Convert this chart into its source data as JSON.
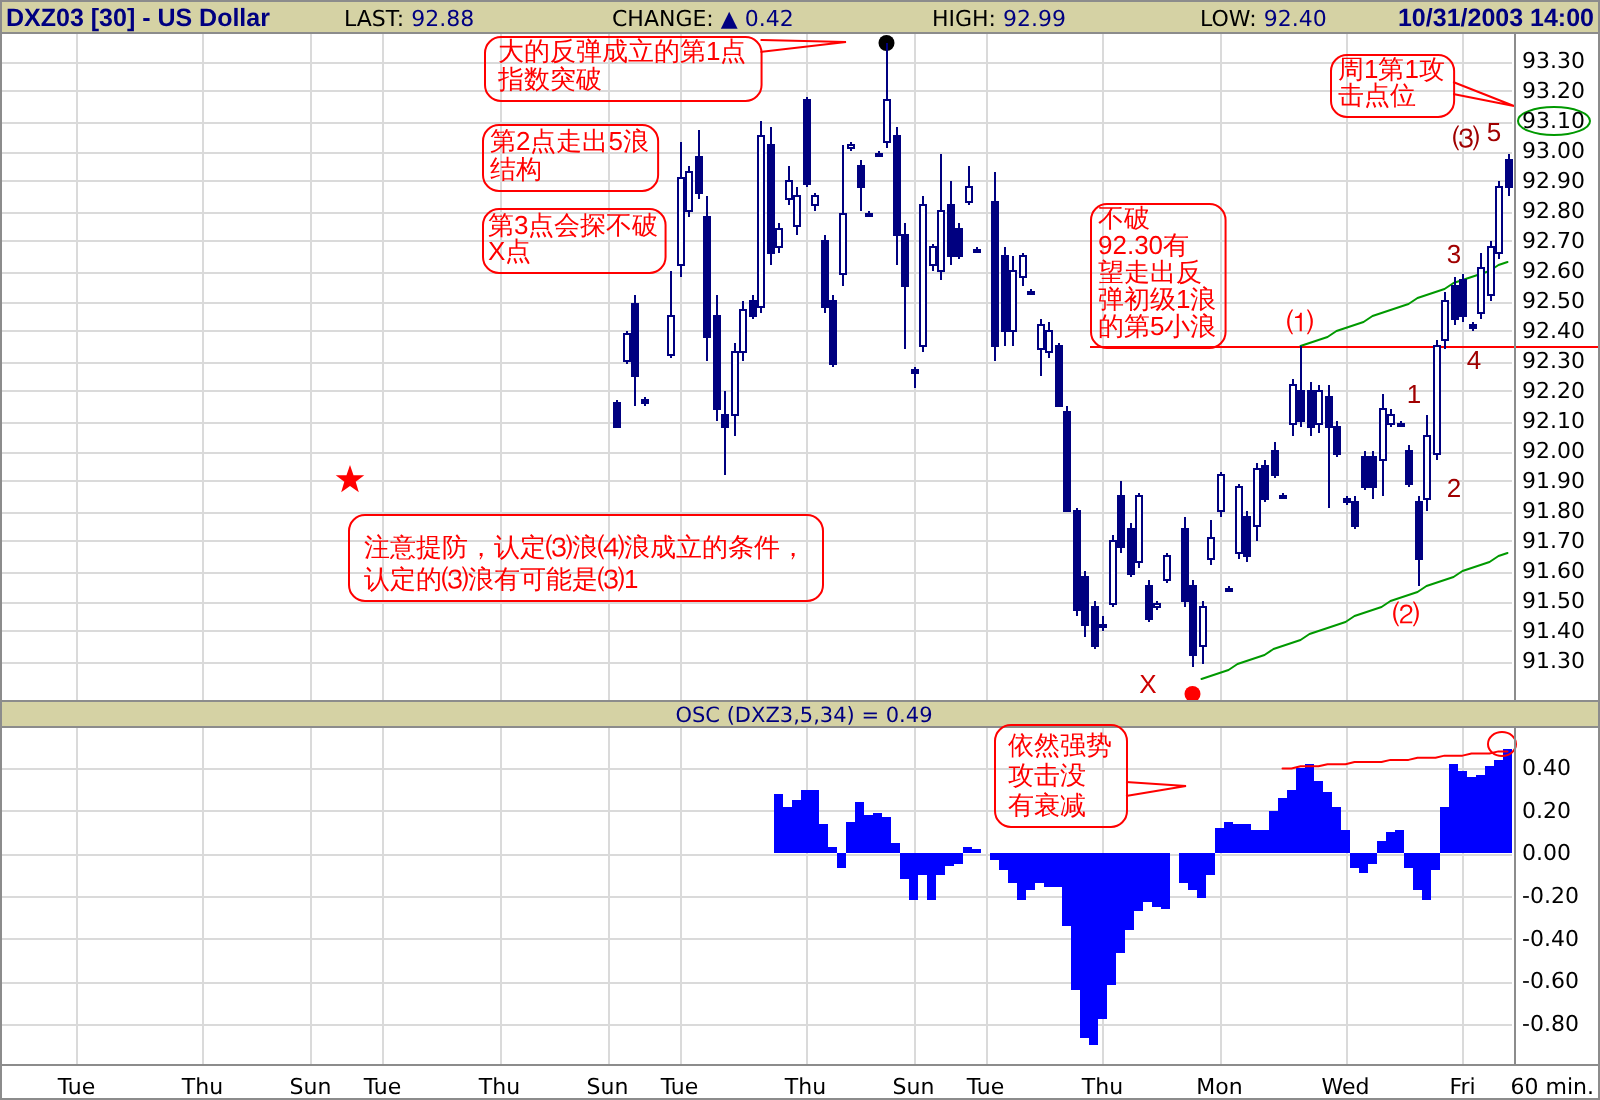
{
  "chart_data": [
    {
      "type": "candlestick",
      "title": "DXZ03 [30] - US Dollar",
      "color": "#000080",
      "annotations": [
        "LAST: 92.88",
        "CHANGE: ▲ 0.42",
        "HIGH: 92.99",
        "LOW: 92.40",
        "10/31/2003 14:00",
        "大的反弹成立的第1点指数突破",
        "第2点走出5浪结构",
        "第3点会探不破X点",
        "周1第1攻击点位",
        "注意提防，认定⑶浪⑷浪成立的条件，认定的⑶浪有可能是⑶1",
        "X",
        "⑴",
        "⑵",
        "⑶",
        "5",
        "1",
        "2",
        "3",
        "4"
      ],
      "categories": [
        null,
        null,
        null,
        null,
        null,
        null,
        null,
        null,
        "Tue",
        null,
        null,
        null,
        null,
        null,
        null,
        null,
        null,
        null,
        null,
        null,
        null,
        null,
        "Thu",
        null,
        null,
        null,
        null,
        null,
        null,
        null,
        null,
        null,
        null,
        null,
        "Sun",
        null,
        null,
        null,
        null,
        null,
        null,
        null,
        "Tue",
        null,
        null,
        null,
        null,
        null,
        null,
        null,
        null,
        null,
        null,
        null,
        null,
        "Thu",
        null,
        null,
        null,
        null,
        null,
        null,
        null,
        null,
        null,
        null,
        null,
        "Sun",
        null,
        null,
        null,
        null,
        null,
        null,
        null,
        "Tue",
        null,
        null,
        null,
        null,
        null,
        null,
        null,
        null,
        null,
        null,
        null,
        null,
        null,
        "Thu",
        null,
        null,
        null,
        null,
        null,
        null,
        null,
        null,
        null,
        null,
        null,
        "Sun",
        null,
        null,
        null,
        null,
        null,
        null,
        null,
        "Tue",
        null,
        null,
        null,
        null,
        null,
        null,
        null,
        null,
        null,
        null,
        null,
        null,
        "Thu",
        null,
        null,
        null,
        null,
        null,
        null,
        null,
        null,
        null,
        null,
        null,
        null,
        "Mon",
        null,
        null,
        null,
        null,
        null,
        null,
        null,
        null,
        null,
        null,
        null,
        null,
        null,
        "Wed",
        null,
        null,
        null,
        null,
        null,
        null,
        null,
        null,
        null,
        null,
        null,
        null,
        "Fri",
        null,
        null,
        null,
        null,
        null
      ],
      "ohlc": [
        null,
        null,
        null,
        null,
        null,
        null,
        null,
        null,
        null,
        null,
        null,
        null,
        null,
        null,
        null,
        null,
        null,
        null,
        null,
        null,
        null,
        null,
        null,
        null,
        null,
        null,
        null,
        null,
        null,
        null,
        null,
        null,
        null,
        null,
        null,
        null,
        null,
        null,
        null,
        null,
        null,
        null,
        null,
        null,
        null,
        null,
        null,
        null,
        null,
        null,
        null,
        null,
        null,
        null,
        null,
        null,
        null,
        null,
        null,
        null,
        null,
        null,
        null,
        null,
        null,
        null,
        null,
        null,
        [
          92.16,
          92.17,
          92.08,
          92.08
        ],
        [
          92.3,
          92.4,
          92.29,
          92.39
        ],
        [
          92.49,
          92.52,
          92.15,
          92.25
        ],
        [
          92.17,
          92.18,
          92.15,
          92.16
        ],
        null,
        null,
        [
          92.32,
          92.6,
          92.31,
          92.45
        ],
        [
          92.62,
          93.03,
          92.58,
          92.91
        ],
        [
          92.8,
          92.95,
          92.78,
          92.93
        ],
        [
          92.98,
          93.07,
          92.84,
          92.86
        ],
        [
          92.78,
          92.85,
          92.3,
          92.38
        ],
        [
          92.45,
          92.52,
          92.1,
          92.14
        ],
        [
          92.12,
          92.2,
          91.92,
          92.08
        ],
        [
          92.12,
          92.36,
          92.05,
          92.33
        ],
        [
          92.33,
          92.5,
          92.3,
          92.47
        ],
        [
          92.5,
          92.52,
          92.44,
          92.45
        ],
        [
          92.48,
          93.1,
          92.46,
          93.05
        ],
        [
          93.02,
          93.08,
          92.62,
          92.66
        ],
        [
          92.68,
          92.76,
          92.66,
          92.74
        ],
        [
          92.84,
          92.95,
          92.82,
          92.9
        ],
        [
          92.75,
          92.88,
          92.72,
          92.85
        ],
        [
          93.17,
          93.18,
          92.88,
          92.89
        ],
        [
          92.82,
          92.86,
          92.8,
          92.85
        ],
        [
          92.7,
          92.72,
          92.46,
          92.48
        ],
        [
          92.5,
          92.52,
          92.28,
          92.29
        ],
        [
          92.59,
          93.02,
          92.55,
          92.79
        ],
        [
          93.01,
          93.03,
          93.0,
          93.02
        ],
        [
          92.95,
          92.97,
          92.8,
          92.88
        ],
        [
          92.79,
          92.8,
          92.78,
          92.79
        ],
        [
          92.99,
          93.0,
          92.98,
          92.99
        ],
        [
          93.03,
          93.36,
          93.01,
          93.17
        ],
        [
          93.05,
          93.08,
          92.62,
          92.72
        ],
        [
          92.72,
          92.76,
          92.34,
          92.55
        ],
        [
          92.27,
          92.28,
          92.21,
          92.26
        ],
        [
          92.35,
          92.85,
          92.33,
          92.82
        ],
        [
          92.62,
          92.69,
          92.6,
          92.68
        ],
        [
          92.6,
          92.99,
          92.57,
          92.8
        ],
        [
          92.82,
          92.9,
          92.62,
          92.65
        ],
        [
          92.74,
          92.76,
          92.64,
          92.65
        ],
        [
          92.83,
          92.95,
          92.82,
          92.88
        ],
        [
          92.67,
          92.68,
          92.66,
          92.67
        ],
        null,
        [
          92.83,
          92.93,
          92.3,
          92.35
        ],
        [
          92.65,
          92.68,
          92.35,
          92.4
        ],
        [
          92.4,
          92.65,
          92.35,
          92.6
        ],
        [
          92.58,
          92.66,
          92.55,
          92.65
        ],
        [
          92.53,
          92.54,
          92.52,
          92.53
        ],
        [
          92.34,
          92.44,
          92.25,
          92.42
        ],
        [
          92.33,
          92.43,
          92.31,
          92.4
        ],
        [
          92.35,
          92.36,
          92.15,
          92.15
        ],
        [
          92.13,
          92.15,
          91.8,
          91.8
        ],
        [
          91.8,
          91.81,
          91.45,
          91.47
        ],
        [
          91.58,
          91.6,
          91.38,
          91.42
        ],
        [
          91.48,
          91.5,
          91.34,
          91.35
        ],
        [
          91.42,
          91.45,
          91.4,
          91.42
        ],
        [
          91.49,
          91.72,
          91.48,
          91.7
        ],
        [
          91.85,
          91.9,
          91.66,
          91.68
        ],
        [
          91.74,
          91.76,
          91.58,
          91.59
        ],
        [
          91.63,
          91.86,
          91.61,
          91.85
        ],
        [
          91.55,
          91.57,
          91.43,
          91.44
        ],
        [
          91.48,
          91.5,
          91.47,
          91.49
        ],
        [
          91.57,
          91.66,
          91.56,
          91.65
        ],
        null,
        [
          91.74,
          91.78,
          91.48,
          91.5
        ],
        [
          91.55,
          91.57,
          91.28,
          91.32
        ],
        [
          91.35,
          91.5,
          91.29,
          91.48
        ],
        [
          91.64,
          91.77,
          91.62,
          91.71
        ],
        [
          91.8,
          91.93,
          91.78,
          91.92
        ],
        [
          91.54,
          91.55,
          91.53,
          91.54
        ],
        [
          91.66,
          91.89,
          91.64,
          91.88
        ],
        [
          91.78,
          91.8,
          91.63,
          91.65
        ],
        [
          91.75,
          91.96,
          91.7,
          91.94
        ],
        [
          91.95,
          91.97,
          91.83,
          91.84
        ],
        [
          92.0,
          92.03,
          91.91,
          91.92
        ],
        [
          91.85,
          91.86,
          91.84,
          91.85
        ],
        [
          92.09,
          92.24,
          92.05,
          92.22
        ],
        [
          92.2,
          92.35,
          92.08,
          92.1
        ],
        [
          92.2,
          92.23,
          92.05,
          92.08
        ],
        [
          92.09,
          92.22,
          92.06,
          92.2
        ],
        [
          92.18,
          92.22,
          91.81,
          92.08
        ],
        [
          92.08,
          92.1,
          91.98,
          91.99
        ],
        [
          91.84,
          91.85,
          91.82,
          91.83
        ],
        [
          91.83,
          91.85,
          91.74,
          91.75
        ],
        [
          91.98,
          92.0,
          91.87,
          91.88
        ],
        [
          91.98,
          92.0,
          91.84,
          91.88
        ],
        [
          91.97,
          92.19,
          91.85,
          92.14
        ],
        [
          92.09,
          92.14,
          92.08,
          92.12
        ],
        [
          92.09,
          92.1,
          92.08,
          92.09
        ],
        [
          92.0,
          92.02,
          91.88,
          91.89
        ],
        [
          91.83,
          91.85,
          91.55,
          91.64
        ],
        [
          91.84,
          92.12,
          91.8,
          92.05
        ],
        [
          91.99,
          92.37,
          91.97,
          92.35
        ],
        [
          92.37,
          92.53,
          92.34,
          92.5
        ],
        [
          92.55,
          92.58,
          92.42,
          92.44
        ],
        [
          92.57,
          92.59,
          92.43,
          92.45
        ],
        [
          92.42,
          92.43,
          92.4,
          92.41
        ],
        [
          92.46,
          92.66,
          92.44,
          92.61
        ],
        [
          92.52,
          92.7,
          92.5,
          92.68
        ],
        [
          92.66,
          92.9,
          92.64,
          92.88
        ],
        [
          92.97,
          92.99,
          92.85,
          92.88
        ]
      ],
      "series": [
        {
          "type": "line",
          "color": "#009900",
          "values": [
            null,
            null,
            null,
            null,
            null,
            null,
            null,
            null,
            null,
            null,
            null,
            null,
            null,
            null,
            null,
            null,
            null,
            null,
            null,
            null,
            null,
            null,
            null,
            null,
            null,
            null,
            null,
            null,
            null,
            null,
            null,
            null,
            null,
            null,
            null,
            null,
            null,
            null,
            null,
            null,
            null,
            null,
            null,
            null,
            null,
            null,
            null,
            null,
            null,
            null,
            null,
            null,
            null,
            null,
            null,
            null,
            null,
            null,
            null,
            null,
            null,
            null,
            null,
            null,
            null,
            null,
            null,
            null,
            null,
            null,
            null,
            null,
            null,
            null,
            null,
            null,
            null,
            null,
            null,
            null,
            null,
            null,
            null,
            null,
            null,
            null,
            null,
            null,
            null,
            null,
            null,
            null,
            null,
            null,
            null,
            null,
            null,
            null,
            null,
            null,
            null,
            null,
            null,
            null,
            null,
            null,
            null,
            null,
            null,
            null,
            null,
            null,
            null,
            null,
            null,
            null,
            null,
            null,
            null,
            null,
            null,
            null,
            null,
            null,
            null,
            null,
            null,
            null,
            null,
            null,
            null,
            null,
            null,
            null,
            null,
            null,
            null,
            null,
            null,
            null,
            null,
            null,
            null,
            null,
            92.35,
            92.36,
            92.37,
            92.38,
            92.4,
            92.41,
            92.42,
            92.43,
            92.45,
            92.46,
            92.47,
            92.48,
            92.49,
            92.51,
            92.52,
            92.53,
            92.54,
            92.56,
            92.57,
            92.58,
            92.59,
            92.6,
            92.62,
            92.63
          ]
        },
        {
          "type": "line",
          "color": "#009900",
          "values": [
            null,
            null,
            null,
            null,
            null,
            null,
            null,
            null,
            null,
            null,
            null,
            null,
            null,
            null,
            null,
            null,
            null,
            null,
            null,
            null,
            null,
            null,
            null,
            null,
            null,
            null,
            null,
            null,
            null,
            null,
            null,
            null,
            null,
            null,
            null,
            null,
            null,
            null,
            null,
            null,
            null,
            null,
            null,
            null,
            null,
            null,
            null,
            null,
            null,
            null,
            null,
            null,
            null,
            null,
            null,
            null,
            null,
            null,
            null,
            null,
            null,
            null,
            null,
            null,
            null,
            null,
            null,
            null,
            null,
            null,
            null,
            null,
            null,
            null,
            null,
            null,
            null,
            null,
            null,
            null,
            null,
            null,
            null,
            null,
            null,
            null,
            null,
            null,
            null,
            null,
            null,
            null,
            null,
            null,
            null,
            null,
            null,
            null,
            null,
            null,
            null,
            null,
            null,
            null,
            null,
            null,
            null,
            null,
            null,
            null,
            null,
            null,
            null,
            null,
            null,
            null,
            null,
            null,
            null,
            null,
            null,
            null,
            null,
            null,
            null,
            null,
            null,
            null,
            null,
            null,
            null,
            null,
            null,
            91.24,
            91.25,
            91.26,
            91.27,
            91.29,
            91.3,
            91.31,
            91.32,
            91.34,
            91.35,
            91.36,
            91.37,
            91.39,
            91.4,
            91.41,
            91.42,
            91.43,
            91.45,
            91.46,
            91.47,
            91.48,
            91.5,
            91.51,
            91.52,
            91.53,
            91.55,
            91.56,
            91.57,
            91.58,
            91.6,
            91.61,
            91.62,
            91.63,
            91.65,
            91.66
          ]
        },
        {
          "type": "scatter",
          "color": "#000000",
          "marker": "circle",
          "values": [
            null,
            null,
            null,
            null,
            null,
            null,
            null,
            null,
            null,
            null,
            null,
            null,
            null,
            null,
            null,
            null,
            null,
            null,
            null,
            null,
            null,
            null,
            null,
            null,
            null,
            null,
            null,
            null,
            null,
            null,
            null,
            null,
            null,
            null,
            null,
            null,
            null,
            null,
            null,
            null,
            null,
            null,
            null,
            null,
            null,
            null,
            null,
            null,
            null,
            null,
            null,
            null,
            null,
            null,
            null,
            null,
            null,
            null,
            null,
            null,
            null,
            null,
            null,
            null,
            null,
            null,
            null,
            null,
            null,
            null,
            null,
            null,
            null,
            null,
            null,
            null,
            null,
            null,
            null,
            null,
            null,
            null,
            null,
            null,
            null,
            null,
            null,
            null,
            null,
            null,
            null,
            null,
            null,
            null,
            null,
            null,
            null,
            null,
            93.36,
            null,
            null,
            null,
            null,
            null,
            null,
            null,
            null,
            null,
            null,
            null,
            null,
            null,
            null,
            null,
            null,
            null,
            null,
            null,
            null,
            null,
            null,
            null,
            null,
            null,
            null,
            null,
            null,
            null,
            null,
            null,
            null,
            null,
            null,
            null,
            null,
            null,
            null,
            null,
            null,
            null,
            null,
            null,
            null,
            null,
            null,
            null,
            null,
            null,
            null,
            null,
            null,
            null,
            null,
            null,
            null,
            null,
            null,
            null,
            null,
            null,
            null,
            null,
            null,
            null,
            null,
            null,
            null,
            null
          ]
        },
        {
          "type": "scatter",
          "color": "#ff0000",
          "marker": "circle",
          "values": [
            null,
            null,
            null,
            null,
            null,
            null,
            null,
            null,
            null,
            null,
            null,
            null,
            null,
            null,
            null,
            null,
            null,
            null,
            null,
            null,
            null,
            null,
            null,
            null,
            null,
            null,
            null,
            null,
            null,
            null,
            null,
            null,
            null,
            null,
            null,
            null,
            null,
            null,
            null,
            null,
            null,
            null,
            null,
            null,
            null,
            null,
            null,
            null,
            null,
            null,
            null,
            null,
            null,
            null,
            null,
            null,
            null,
            null,
            null,
            null,
            null,
            null,
            null,
            null,
            null,
            null,
            null,
            null,
            null,
            null,
            null,
            null,
            null,
            null,
            null,
            null,
            null,
            null,
            null,
            null,
            null,
            null,
            null,
            null,
            null,
            null,
            null,
            null,
            null,
            null,
            null,
            null,
            null,
            null,
            null,
            null,
            null,
            null,
            null,
            null,
            null,
            null,
            null,
            null,
            null,
            null,
            null,
            null,
            null,
            null,
            null,
            null,
            null,
            null,
            null,
            null,
            null,
            null,
            null,
            null,
            null,
            null,
            null,
            null,
            null,
            null,
            null,
            null,
            null,
            null,
            null,
            null,
            91.19,
            null,
            null,
            null,
            null,
            null,
            null,
            null,
            null,
            null,
            null,
            null,
            null,
            null,
            null,
            null,
            null,
            null,
            null,
            null,
            null,
            null,
            null,
            null,
            null,
            null,
            null,
            null,
            null,
            null,
            null,
            null,
            null,
            null,
            null,
            null
          ]
        }
      ],
      "ylim": [
        91.17,
        93.39
      ],
      "yticks": [
        {
          "value": 91.3,
          "label": "91.30"
        },
        {
          "value": 91.4,
          "label": "91.40"
        },
        {
          "value": 91.5,
          "label": "91.50"
        },
        {
          "value": 91.6,
          "label": "91.60"
        },
        {
          "value": 91.7,
          "label": "91.70"
        },
        {
          "value": 91.8,
          "label": "91.80"
        },
        {
          "value": 91.9,
          "label": "91.90"
        },
        {
          "value": 92,
          "label": "92.00"
        },
        {
          "value": 92.1,
          "label": "92.10"
        },
        {
          "value": 92.2,
          "label": "92.20"
        },
        {
          "value": 92.3,
          "label": "92.30"
        },
        {
          "value": 92.4,
          "label": "92.40"
        },
        {
          "value": 92.5,
          "label": "92.50"
        },
        {
          "value": 92.6,
          "label": "92.60"
        },
        {
          "value": 92.7,
          "label": "92.70"
        },
        {
          "value": 92.8,
          "label": "92.80"
        },
        {
          "value": 92.9,
          "label": "92.90"
        },
        {
          "value": 93,
          "label": "93.00"
        },
        {
          "value": 93.1,
          "label": "93.10"
        },
        {
          "value": 93.2,
          "label": "93.20"
        },
        {
          "value": 93.3,
          "label": "93.30"
        }
      ],
      "grid": true,
      "tick_labels": "y",
      "ref_lines": [
        {
          "axis": "y",
          "value": 92.35,
          "label": "不破92.30有望走出反弹初级1浪的第5小浪",
          "color": "#ff0000"
        }
      ]
    },
    {
      "type": "bar",
      "title": "OSC (DXZ3,5,34) = 0.49",
      "xlabel": "60 min.",
      "annotations": [
        "依然强势攻击没有衰减"
      ],
      "categories": [
        null,
        null,
        null,
        null,
        null,
        null,
        null,
        null,
        "Tue",
        null,
        null,
        null,
        null,
        null,
        null,
        null,
        null,
        null,
        null,
        null,
        null,
        null,
        "Thu",
        null,
        null,
        null,
        null,
        null,
        null,
        null,
        null,
        null,
        null,
        null,
        "Sun",
        null,
        null,
        null,
        null,
        null,
        null,
        null,
        "Tue",
        null,
        null,
        null,
        null,
        null,
        null,
        null,
        null,
        null,
        null,
        null,
        null,
        "Thu",
        null,
        null,
        null,
        null,
        null,
        null,
        null,
        null,
        null,
        null,
        null,
        "Sun",
        null,
        null,
        null,
        null,
        null,
        null,
        null,
        "Tue",
        null,
        null,
        null,
        null,
        null,
        null,
        null,
        null,
        null,
        null,
        null,
        null,
        null,
        "Thu",
        null,
        null,
        null,
        null,
        null,
        null,
        null,
        null,
        null,
        null,
        null,
        "Sun",
        null,
        null,
        null,
        null,
        null,
        null,
        null,
        "Tue",
        null,
        null,
        null,
        null,
        null,
        null,
        null,
        null,
        null,
        null,
        null,
        null,
        "Thu",
        null,
        null,
        null,
        null,
        null,
        null,
        null,
        null,
        null,
        null,
        null,
        null,
        "Mon",
        null,
        null,
        null,
        null,
        null,
        null,
        null,
        null,
        null,
        null,
        null,
        null,
        null,
        "Wed",
        null,
        null,
        null,
        null,
        null,
        null,
        null,
        null,
        null,
        null,
        null,
        null,
        "Fri",
        null,
        null,
        null,
        null,
        null
      ],
      "series": [
        {
          "type": "bar",
          "color": "#0000ff",
          "values": [
            null,
            null,
            null,
            null,
            null,
            null,
            null,
            null,
            null,
            null,
            null,
            null,
            null,
            null,
            null,
            null,
            null,
            null,
            null,
            null,
            null,
            null,
            null,
            null,
            null,
            null,
            null,
            null,
            null,
            null,
            null,
            null,
            null,
            null,
            null,
            null,
            null,
            null,
            null,
            null,
            null,
            null,
            null,
            null,
            null,
            null,
            null,
            null,
            null,
            null,
            null,
            null,
            null,
            null,
            null,
            null,
            null,
            null,
            null,
            null,
            null,
            null,
            null,
            null,
            null,
            null,
            null,
            null,
            null,
            null,
            null,
            null,
            null,
            null,
            null,
            null,
            null,
            null,
            null,
            null,
            null,
            null,
            null,
            null,
            null,
            null,
            0.28,
            0.22,
            0.25,
            0.3,
            0.3,
            0.14,
            0.03,
            -0.07,
            0.15,
            0.24,
            0.18,
            0.19,
            0.17,
            0.05,
            -0.12,
            -0.22,
            -0.1,
            -0.22,
            -0.1,
            -0.06,
            -0.05,
            0.03,
            0.02,
            null,
            -0.03,
            -0.08,
            -0.14,
            -0.22,
            -0.17,
            -0.14,
            -0.16,
            -0.16,
            -0.34,
            -0.64,
            -0.87,
            -0.9,
            -0.78,
            -0.62,
            -0.47,
            -0.36,
            -0.27,
            -0.23,
            -0.25,
            -0.26,
            null,
            -0.14,
            -0.17,
            -0.21,
            -0.1,
            0.12,
            0.15,
            0.14,
            0.14,
            0.11,
            0.11,
            0.2,
            0.26,
            0.3,
            0.4,
            0.42,
            0.34,
            0.29,
            0.22,
            0.11,
            -0.07,
            -0.09,
            -0.05,
            0.06,
            0.1,
            0.11,
            -0.07,
            -0.17,
            -0.22,
            -0.08,
            0.22,
            0.42,
            0.39,
            0.36,
            0.37,
            0.41,
            0.44,
            0.49
          ]
        },
        {
          "type": "line",
          "color": "#ff0000",
          "values": [
            null,
            null,
            null,
            null,
            null,
            null,
            null,
            null,
            null,
            null,
            null,
            null,
            null,
            null,
            null,
            null,
            null,
            null,
            null,
            null,
            null,
            null,
            null,
            null,
            null,
            null,
            null,
            null,
            null,
            null,
            null,
            null,
            null,
            null,
            null,
            null,
            null,
            null,
            null,
            null,
            null,
            null,
            null,
            null,
            null,
            null,
            null,
            null,
            null,
            null,
            null,
            null,
            null,
            null,
            null,
            null,
            null,
            null,
            null,
            null,
            null,
            null,
            null,
            null,
            null,
            null,
            null,
            null,
            null,
            null,
            null,
            null,
            null,
            null,
            null,
            null,
            null,
            null,
            null,
            null,
            null,
            null,
            null,
            null,
            null,
            null,
            null,
            null,
            null,
            null,
            null,
            null,
            null,
            null,
            null,
            null,
            null,
            null,
            null,
            null,
            null,
            null,
            null,
            null,
            null,
            null,
            null,
            null,
            null,
            null,
            null,
            null,
            null,
            null,
            null,
            null,
            null,
            null,
            null,
            null,
            null,
            null,
            null,
            null,
            null,
            null,
            null,
            null,
            null,
            null,
            null,
            null,
            null,
            null,
            null,
            null,
            null,
            null,
            null,
            null,
            null,
            null,
            0.4,
            0.4,
            0.41,
            0.41,
            0.41,
            0.42,
            0.42,
            0.42,
            0.43,
            0.43,
            0.43,
            0.43,
            0.44,
            0.44,
            0.44,
            0.45,
            0.45,
            0.45,
            0.46,
            0.46,
            0.46,
            0.47,
            0.47,
            0.47,
            0.48,
            0.48
          ]
        }
      ],
      "ylim": [
        -0.99,
        0.59
      ],
      "yticks": [
        {
          "value": -0.8,
          "label": "-0.80"
        },
        {
          "value": -0.6,
          "label": "-0.60"
        },
        {
          "value": -0.4,
          "label": "-0.40"
        },
        {
          "value": -0.2,
          "label": "-0.20"
        },
        {
          "value": 0,
          "label": "0.00"
        },
        {
          "value": 0.2,
          "label": "0.20"
        },
        {
          "value": 0.4,
          "label": "0.40"
        }
      ],
      "grid": true
    }
  ]
}
